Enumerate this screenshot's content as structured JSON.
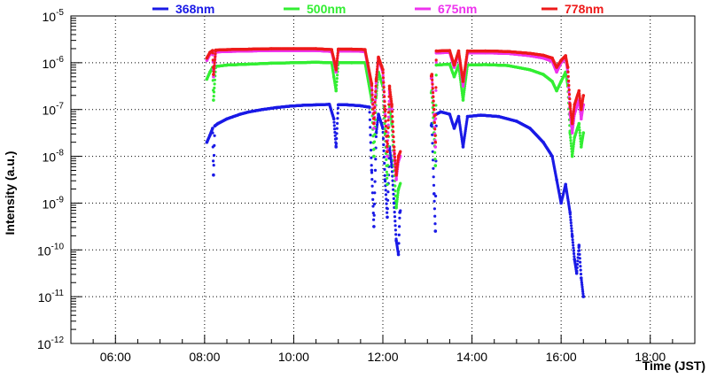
{
  "chart_data": {
    "type": "scatter",
    "xlabel": "Time (JST)",
    "ylabel": "Intensity (a.u.)",
    "xlim": [
      5.0,
      19.0
    ],
    "ylim_log10": [
      -12,
      -5
    ],
    "y_scale": "log",
    "grid": true,
    "legend_position": "top",
    "x_ticks": [
      {
        "value": 6,
        "label": "06:00"
      },
      {
        "value": 8,
        "label": "08:00"
      },
      {
        "value": 10,
        "label": "10:00"
      },
      {
        "value": 12,
        "label": "12:00"
      },
      {
        "value": 14,
        "label": "14:00"
      },
      {
        "value": 16,
        "label": "16:00"
      },
      {
        "value": 18,
        "label": "18:00"
      }
    ],
    "y_ticks": [
      {
        "exp": -5,
        "base": "10",
        "sup": "-5"
      },
      {
        "exp": -6,
        "base": "10",
        "sup": "-6"
      },
      {
        "exp": -7,
        "base": "10",
        "sup": "-7"
      },
      {
        "exp": -8,
        "base": "10",
        "sup": "-8"
      },
      {
        "exp": -9,
        "base": "10",
        "sup": "-9"
      },
      {
        "exp": -10,
        "base": "10",
        "sup": "-10"
      },
      {
        "exp": -11,
        "base": "10",
        "sup": "-11"
      },
      {
        "exp": -12,
        "base": "10",
        "sup": "-12"
      }
    ],
    "series": [
      {
        "name": "368nm",
        "color": "#1a1ae6",
        "points": [
          [
            8.05,
            -7.7
          ],
          [
            8.12,
            -7.55
          ],
          [
            8.18,
            -7.4
          ],
          [
            8.2,
            -8.4
          ],
          [
            8.23,
            -7.35
          ],
          [
            8.3,
            -7.3
          ],
          [
            8.5,
            -7.2
          ],
          [
            8.8,
            -7.1
          ],
          [
            9.0,
            -7.05
          ],
          [
            9.3,
            -7.0
          ],
          [
            9.6,
            -6.96
          ],
          [
            9.9,
            -6.93
          ],
          [
            10.2,
            -6.91
          ],
          [
            10.5,
            -6.9
          ],
          [
            10.8,
            -6.89
          ],
          [
            10.9,
            -7.2
          ],
          [
            10.95,
            -7.8
          ],
          [
            11.0,
            -6.9
          ],
          [
            11.2,
            -6.9
          ],
          [
            11.5,
            -6.92
          ],
          [
            11.7,
            -6.95
          ],
          [
            11.75,
            -8.3
          ],
          [
            11.8,
            -9.5
          ],
          [
            11.85,
            -7.5
          ],
          [
            11.9,
            -7.1
          ],
          [
            12.0,
            -7.4
          ],
          [
            12.05,
            -8.5
          ],
          [
            12.1,
            -9.3
          ],
          [
            12.15,
            -7.8
          ],
          [
            12.2,
            -8.2
          ],
          [
            12.25,
            -9.0
          ],
          [
            12.3,
            -9.8
          ],
          [
            12.35,
            -10.1
          ],
          [
            12.38,
            -9.2
          ],
          [
            13.1,
            -7.3
          ],
          [
            13.15,
            -8.8
          ],
          [
            13.18,
            -9.6
          ],
          [
            13.2,
            -7.1
          ],
          [
            13.3,
            -7.05
          ],
          [
            13.5,
            -7.1
          ],
          [
            13.6,
            -7.4
          ],
          [
            13.7,
            -7.15
          ],
          [
            13.8,
            -7.8
          ],
          [
            13.9,
            -7.15
          ],
          [
            14.2,
            -7.12
          ],
          [
            14.6,
            -7.15
          ],
          [
            15.0,
            -7.25
          ],
          [
            15.3,
            -7.4
          ],
          [
            15.6,
            -7.7
          ],
          [
            15.8,
            -8.0
          ],
          [
            15.9,
            -8.5
          ],
          [
            16.0,
            -9.0
          ],
          [
            16.1,
            -8.6
          ],
          [
            16.2,
            -9.2
          ],
          [
            16.25,
            -9.7
          ],
          [
            16.3,
            -10.2
          ],
          [
            16.35,
            -10.5
          ],
          [
            16.4,
            -9.9
          ],
          [
            16.45,
            -10.6
          ],
          [
            16.5,
            -11.0
          ]
        ]
      },
      {
        "name": "500nm",
        "color": "#33ee33",
        "points": [
          [
            8.05,
            -6.35
          ],
          [
            8.12,
            -6.2
          ],
          [
            8.18,
            -6.1
          ],
          [
            8.2,
            -6.8
          ],
          [
            8.25,
            -6.08
          ],
          [
            8.5,
            -6.05
          ],
          [
            9.0,
            -6.03
          ],
          [
            9.5,
            -6.01
          ],
          [
            10.0,
            -6.0
          ],
          [
            10.5,
            -5.99
          ],
          [
            10.85,
            -6.0
          ],
          [
            10.9,
            -6.3
          ],
          [
            10.95,
            -6.6
          ],
          [
            11.0,
            -6.0
          ],
          [
            11.3,
            -6.0
          ],
          [
            11.6,
            -6.0
          ],
          [
            11.75,
            -6.8
          ],
          [
            11.8,
            -8.0
          ],
          [
            11.85,
            -6.7
          ],
          [
            11.9,
            -6.2
          ],
          [
            12.0,
            -6.5
          ],
          [
            12.05,
            -7.5
          ],
          [
            12.1,
            -8.6
          ],
          [
            12.15,
            -6.9
          ],
          [
            12.2,
            -7.3
          ],
          [
            12.25,
            -8.2
          ],
          [
            12.3,
            -9.1
          ],
          [
            12.35,
            -8.7
          ],
          [
            13.1,
            -6.6
          ],
          [
            13.15,
            -7.5
          ],
          [
            13.18,
            -8.2
          ],
          [
            13.2,
            -6.05
          ],
          [
            13.5,
            -6.03
          ],
          [
            13.6,
            -6.3
          ],
          [
            13.7,
            -6.05
          ],
          [
            13.8,
            -6.8
          ],
          [
            13.9,
            -6.05
          ],
          [
            14.3,
            -6.04
          ],
          [
            14.8,
            -6.06
          ],
          [
            15.3,
            -6.15
          ],
          [
            15.6,
            -6.25
          ],
          [
            15.8,
            -6.4
          ],
          [
            15.9,
            -6.6
          ],
          [
            16.0,
            -6.4
          ],
          [
            16.1,
            -6.2
          ],
          [
            16.15,
            -6.5
          ],
          [
            16.2,
            -7.5
          ],
          [
            16.25,
            -8.0
          ],
          [
            16.3,
            -7.6
          ],
          [
            16.4,
            -7.3
          ],
          [
            16.45,
            -7.8
          ],
          [
            16.5,
            -7.5
          ]
        ]
      },
      {
        "name": "675nm",
        "color": "#ee33ee",
        "points": [
          [
            8.05,
            -5.95
          ],
          [
            8.12,
            -5.82
          ],
          [
            8.18,
            -5.78
          ],
          [
            8.2,
            -6.3
          ],
          [
            8.25,
            -5.77
          ],
          [
            8.5,
            -5.76
          ],
          [
            9.0,
            -5.75
          ],
          [
            9.5,
            -5.74
          ],
          [
            10.0,
            -5.74
          ],
          [
            10.5,
            -5.74
          ],
          [
            10.85,
            -5.76
          ],
          [
            10.9,
            -5.95
          ],
          [
            10.95,
            -6.2
          ],
          [
            11.0,
            -5.75
          ],
          [
            11.3,
            -5.75
          ],
          [
            11.6,
            -5.76
          ],
          [
            11.75,
            -6.5
          ],
          [
            11.8,
            -7.4
          ],
          [
            11.85,
            -6.4
          ],
          [
            11.9,
            -5.9
          ],
          [
            12.0,
            -6.2
          ],
          [
            12.05,
            -7.1
          ],
          [
            12.1,
            -8.0
          ],
          [
            12.15,
            -6.6
          ],
          [
            12.2,
            -7.0
          ],
          [
            12.25,
            -7.9
          ],
          [
            12.3,
            -8.5
          ],
          [
            12.35,
            -8.1
          ],
          [
            13.1,
            -6.3
          ],
          [
            13.15,
            -7.1
          ],
          [
            13.18,
            -7.8
          ],
          [
            13.2,
            -5.79
          ],
          [
            13.5,
            -5.78
          ],
          [
            13.6,
            -6.1
          ],
          [
            13.7,
            -5.79
          ],
          [
            13.8,
            -6.5
          ],
          [
            13.9,
            -5.79
          ],
          [
            14.3,
            -5.79
          ],
          [
            14.8,
            -5.8
          ],
          [
            15.3,
            -5.85
          ],
          [
            15.6,
            -5.9
          ],
          [
            15.8,
            -5.97
          ],
          [
            15.9,
            -6.2
          ],
          [
            16.0,
            -6.0
          ],
          [
            16.1,
            -5.9
          ],
          [
            16.15,
            -6.2
          ],
          [
            16.2,
            -7.1
          ],
          [
            16.25,
            -7.5
          ],
          [
            16.3,
            -7.1
          ],
          [
            16.4,
            -6.8
          ],
          [
            16.45,
            -7.2
          ],
          [
            16.5,
            -6.9
          ]
        ]
      },
      {
        "name": "778nm",
        "color": "#ee1a1a",
        "points": [
          [
            8.05,
            -5.9
          ],
          [
            8.12,
            -5.78
          ],
          [
            8.18,
            -5.74
          ],
          [
            8.2,
            -6.25
          ],
          [
            8.25,
            -5.73
          ],
          [
            8.5,
            -5.72
          ],
          [
            9.0,
            -5.71
          ],
          [
            9.5,
            -5.7
          ],
          [
            10.0,
            -5.7
          ],
          [
            10.5,
            -5.7
          ],
          [
            10.85,
            -5.72
          ],
          [
            10.9,
            -5.92
          ],
          [
            10.95,
            -6.15
          ],
          [
            11.0,
            -5.71
          ],
          [
            11.3,
            -5.71
          ],
          [
            11.6,
            -5.72
          ],
          [
            11.75,
            -6.45
          ],
          [
            11.8,
            -7.3
          ],
          [
            11.85,
            -6.35
          ],
          [
            11.9,
            -5.88
          ],
          [
            12.0,
            -6.15
          ],
          [
            12.05,
            -7.0
          ],
          [
            12.1,
            -7.9
          ],
          [
            12.15,
            -6.5
          ],
          [
            12.2,
            -6.9
          ],
          [
            12.25,
            -7.8
          ],
          [
            12.3,
            -8.4
          ],
          [
            12.35,
            -8.0
          ],
          [
            13.1,
            -6.25
          ],
          [
            13.15,
            -7.0
          ],
          [
            13.18,
            -7.7
          ],
          [
            13.2,
            -5.75
          ],
          [
            13.5,
            -5.74
          ],
          [
            13.6,
            -6.05
          ],
          [
            13.7,
            -5.75
          ],
          [
            13.8,
            -6.4
          ],
          [
            13.9,
            -5.75
          ],
          [
            14.3,
            -5.75
          ],
          [
            14.8,
            -5.76
          ],
          [
            15.3,
            -5.8
          ],
          [
            15.6,
            -5.84
          ],
          [
            15.8,
            -5.9
          ],
          [
            15.9,
            -6.1
          ],
          [
            16.0,
            -5.95
          ],
          [
            16.1,
            -5.85
          ],
          [
            16.15,
            -6.1
          ],
          [
            16.2,
            -6.9
          ],
          [
            16.25,
            -7.3
          ],
          [
            16.3,
            -6.9
          ],
          [
            16.4,
            -6.6
          ],
          [
            16.45,
            -7.0
          ],
          [
            16.5,
            -6.7
          ]
        ]
      }
    ]
  }
}
